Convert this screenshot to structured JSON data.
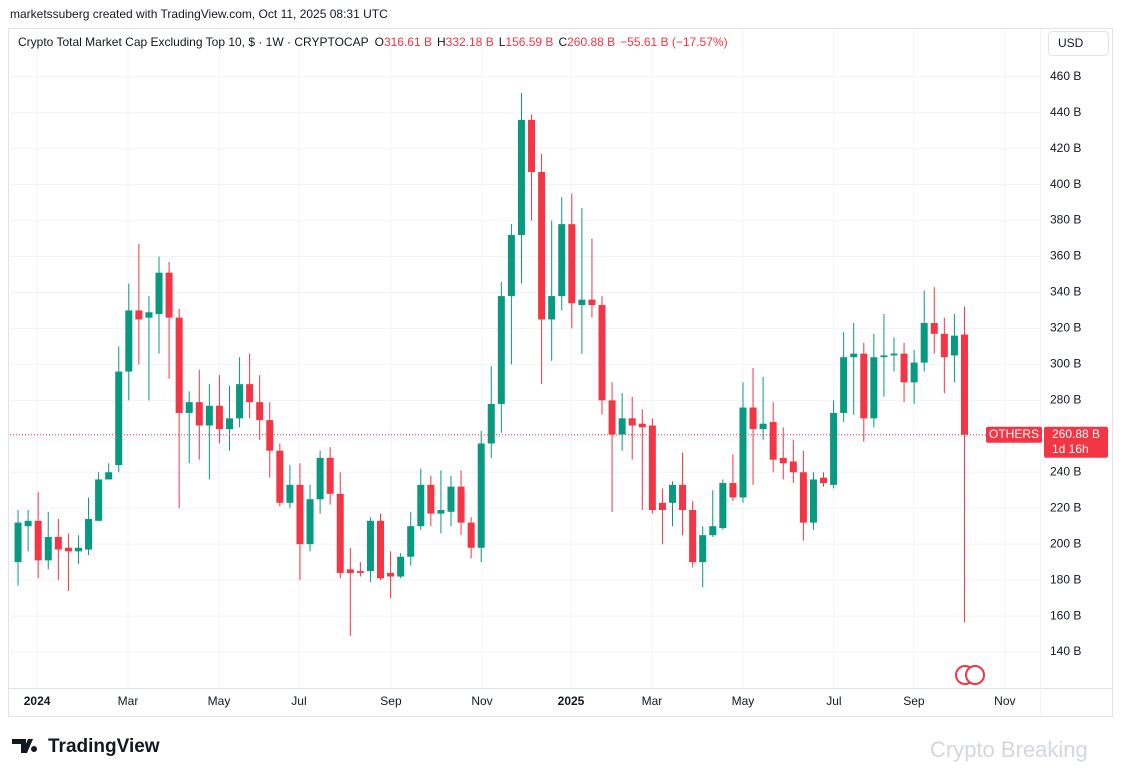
{
  "credit": "marketssuberg created with TradingView.com, Oct 11, 2025 08:31 UTC",
  "currency": "USD",
  "brand": "TradingView",
  "watermark": "Crypto Breaking",
  "chart_data": {
    "type": "candlestick",
    "title": "Crypto Total Market Cap Excluding Top 10, $ · 1W · CRYPTOCAP",
    "header": [
      {
        "key": "O",
        "value": "316.61 B"
      },
      {
        "key": "H",
        "value": "332.18 B"
      },
      {
        "key": "L",
        "value": "156.59 B"
      },
      {
        "key": "C",
        "value": "260.88 B"
      }
    ],
    "change": "−55.61 B (−17.57%)",
    "symbol_label": "OTHERS",
    "last_price_label": "260.88 B",
    "countdown": "1d 16h",
    "up_color": "#089981",
    "down_color": "#f23645",
    "open": [
      190,
      210,
      213,
      191,
      204,
      198,
      196,
      197,
      213,
      236,
      244,
      296,
      330,
      326,
      328,
      351,
      326,
      273,
      279,
      266,
      277,
      264,
      270,
      289,
      279,
      269,
      252,
      223,
      233,
      200,
      225,
      248,
      228,
      186,
      185,
      185,
      213,
      184,
      182,
      193,
      210,
      233,
      217,
      218,
      232,
      212,
      198,
      256,
      278,
      338,
      372,
      436,
      407,
      325,
      338,
      378,
      333,
      336,
      333,
      280,
      261,
      270,
      267,
      266,
      223,
      223,
      233,
      219,
      190,
      205,
      209,
      234,
      226,
      276,
      264,
      268,
      248,
      246,
      240,
      212,
      237,
      233,
      273,
      304,
      306,
      270,
      304,
      305,
      306,
      290,
      301,
      323,
      317,
      305,
      316.61
    ],
    "high": [
      219,
      219,
      229,
      218,
      214,
      206,
      205,
      226,
      240,
      245,
      310,
      345,
      367,
      338,
      360,
      357,
      331,
      285,
      297,
      289,
      294,
      288,
      304,
      306,
      294,
      279,
      256,
      244,
      245,
      233,
      252,
      254,
      240,
      198,
      190,
      215,
      217,
      196,
      195,
      218,
      242,
      238,
      241,
      238,
      241,
      215,
      263,
      299,
      346,
      378,
      451,
      439,
      417,
      380,
      393,
      395,
      387,
      370,
      338,
      290,
      284,
      282,
      275,
      270,
      231,
      235,
      251,
      224,
      210,
      230,
      236,
      250,
      290,
      298,
      293,
      279,
      265,
      258,
      252,
      240,
      240,
      280,
      318,
      323,
      312,
      317,
      328,
      315,
      312,
      308,
      341,
      343,
      326,
      328,
      332.18
    ],
    "low": [
      177,
      196,
      181,
      186,
      180,
      174,
      189,
      194,
      213,
      236,
      240,
      280,
      300,
      280,
      306,
      292,
      220,
      245,
      247,
      236,
      256,
      252,
      265,
      270,
      258,
      237,
      221,
      220,
      180,
      196,
      217,
      222,
      181,
      149,
      182,
      179,
      180,
      170,
      181,
      188,
      208,
      210,
      206,
      210,
      205,
      192,
      190,
      248,
      262,
      300,
      345,
      380,
      289,
      302,
      330,
      320,
      306,
      326,
      272,
      218,
      252,
      247,
      219,
      217,
      200,
      210,
      205,
      187,
      176,
      204,
      208,
      224,
      223,
      233,
      258,
      240,
      236,
      234,
      202,
      208,
      232,
      231,
      268,
      272,
      257,
      265,
      282,
      296,
      279,
      278,
      296,
      306,
      284,
      290,
      156.59
    ],
    "close": [
      212,
      213,
      191,
      204,
      197,
      196,
      198,
      214,
      236,
      240,
      296,
      330,
      325,
      329,
      351,
      326,
      273,
      279,
      266,
      277,
      264,
      270,
      289,
      279,
      269,
      252,
      223,
      233,
      200,
      225,
      248,
      228,
      184,
      184,
      184,
      213,
      181,
      182,
      193,
      210,
      233,
      217,
      219,
      232,
      212,
      198,
      256,
      278,
      338,
      372,
      436,
      407,
      325,
      338,
      378,
      334,
      336,
      333,
      280,
      261,
      270,
      266,
      265,
      219,
      219,
      233,
      219,
      190,
      205,
      210,
      234,
      226,
      276,
      264,
      267,
      247,
      245,
      240,
      212,
      236,
      234,
      273,
      304,
      306,
      270,
      304,
      305,
      306,
      290,
      301,
      323,
      317,
      304,
      316,
      260.88
    ],
    "xlim": [
      -0.8,
      101.7
    ],
    "xticks": [
      {
        "value": 1.89,
        "label": "2024"
      },
      {
        "value": 10.92,
        "label": "Mar"
      },
      {
        "value": 19.96,
        "label": "May"
      },
      {
        "value": 27.9,
        "label": "Jul"
      },
      {
        "value": 37.04,
        "label": "Sep"
      },
      {
        "value": 46.08,
        "label": "Nov"
      },
      {
        "value": 54.92,
        "label": "2025"
      },
      {
        "value": 62.96,
        "label": "Mar"
      },
      {
        "value": 72.0,
        "label": "May"
      },
      {
        "value": 81.03,
        "label": "Jul"
      },
      {
        "value": 88.98,
        "label": "Sep"
      },
      {
        "value": 98.01,
        "label": "Nov"
      }
    ],
    "ylim": [
      120,
      486
    ],
    "yticks": [
      {
        "value": 140,
        "label": "140 B"
      },
      {
        "value": 160,
        "label": "160 B"
      },
      {
        "value": 180,
        "label": "180 B"
      },
      {
        "value": 200,
        "label": "200 B"
      },
      {
        "value": 220,
        "label": "220 B"
      },
      {
        "value": 240,
        "label": "240 B"
      },
      {
        "value": 260,
        "label": "260 B"
      },
      {
        "value": 280,
        "label": "280 B"
      },
      {
        "value": 300,
        "label": "300 B"
      },
      {
        "value": 320,
        "label": "320 B"
      },
      {
        "value": 340,
        "label": "340 B"
      },
      {
        "value": 360,
        "label": "360 B"
      },
      {
        "value": 380,
        "label": "380 B"
      },
      {
        "value": 400,
        "label": "400 B"
      },
      {
        "value": 420,
        "label": "420 B"
      },
      {
        "value": 440,
        "label": "440 B"
      },
      {
        "value": 460,
        "label": "460 B"
      }
    ],
    "grid": true
  }
}
